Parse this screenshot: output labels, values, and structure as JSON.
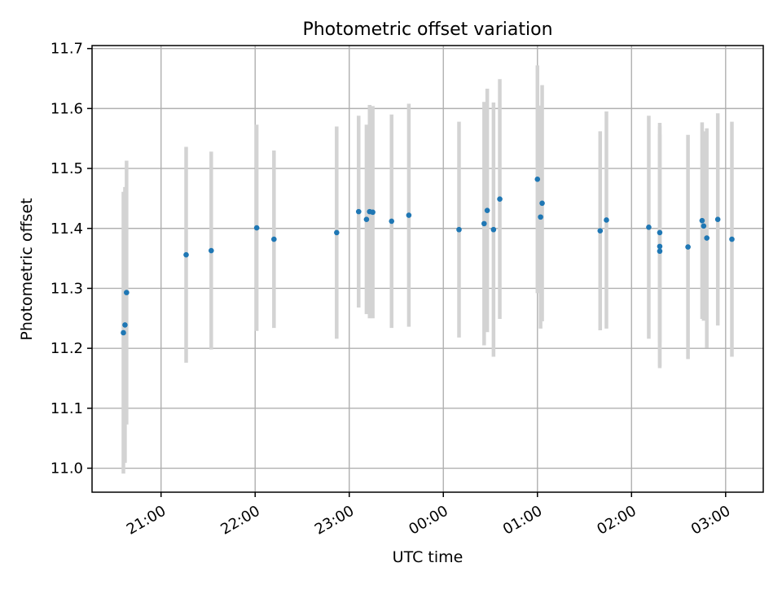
{
  "chart_data": {
    "type": "scatter",
    "title": "Photometric offset variation",
    "xlabel": "UTC time",
    "ylabel": "Photometric offset",
    "grid": true,
    "xlim": [
      "20:16",
      "03:24"
    ],
    "ylim": [
      10.96,
      11.705
    ],
    "x_ticks": [
      "21:00",
      "22:00",
      "23:00",
      "00:00",
      "01:00",
      "02:00",
      "03:00"
    ],
    "y_ticks": [
      "11.0",
      "11.1",
      "11.2",
      "11.3",
      "11.4",
      "11.5",
      "11.6",
      "11.7"
    ],
    "marker_color": "#1f77b4",
    "errorbar_color": "#d3d3d3",
    "points": [
      {
        "time": "20:36",
        "y": 11.226,
        "err": 0.235
      },
      {
        "time": "20:37",
        "y": 11.239,
        "err": 0.23
      },
      {
        "time": "20:38",
        "y": 11.293,
        "err": 0.22
      },
      {
        "time": "21:16",
        "y": 11.356,
        "err": 0.18
      },
      {
        "time": "21:32",
        "y": 11.363,
        "err": 0.165
      },
      {
        "time": "22:01",
        "y": 11.401,
        "err": 0.172
      },
      {
        "time": "22:12",
        "y": 11.382,
        "err": 0.148
      },
      {
        "time": "22:52",
        "y": 11.393,
        "err": 0.177
      },
      {
        "time": "23:06",
        "y": 11.428,
        "err": 0.16
      },
      {
        "time": "23:11",
        "y": 11.415,
        "err": 0.158
      },
      {
        "time": "23:13",
        "y": 11.428,
        "err": 0.178
      },
      {
        "time": "23:15",
        "y": 11.427,
        "err": 0.177
      },
      {
        "time": "23:27",
        "y": 11.412,
        "err": 0.178
      },
      {
        "time": "23:38",
        "y": 11.422,
        "err": 0.186
      },
      {
        "time": "00:10",
        "y": 11.398,
        "err": 0.18
      },
      {
        "time": "00:26",
        "y": 11.408,
        "err": 0.203
      },
      {
        "time": "00:28",
        "y": 11.43,
        "err": 0.203
      },
      {
        "time": "00:32",
        "y": 11.398,
        "err": 0.212
      },
      {
        "time": "00:36",
        "y": 11.449,
        "err": 0.2
      },
      {
        "time": "01:00",
        "y": 11.482,
        "err": 0.19
      },
      {
        "time": "01:02",
        "y": 11.419,
        "err": 0.186
      },
      {
        "time": "01:03",
        "y": 11.442,
        "err": 0.197
      },
      {
        "time": "01:40",
        "y": 11.396,
        "err": 0.166
      },
      {
        "time": "01:44",
        "y": 11.414,
        "err": 0.181
      },
      {
        "time": "02:11",
        "y": 11.402,
        "err": 0.186
      },
      {
        "time": "02:18",
        "y": 11.393,
        "err": 0.183
      },
      {
        "time": "02:18",
        "y": 11.37,
        "err": 0.2
      },
      {
        "time": "02:18",
        "y": 11.362,
        "err": 0.195
      },
      {
        "time": "02:36",
        "y": 11.369,
        "err": 0.187
      },
      {
        "time": "02:45",
        "y": 11.413,
        "err": 0.164
      },
      {
        "time": "02:46",
        "y": 11.404,
        "err": 0.158
      },
      {
        "time": "02:48",
        "y": 11.384,
        "err": 0.183
      },
      {
        "time": "02:55",
        "y": 11.415,
        "err": 0.177
      },
      {
        "time": "03:04",
        "y": 11.382,
        "err": 0.196
      }
    ]
  }
}
